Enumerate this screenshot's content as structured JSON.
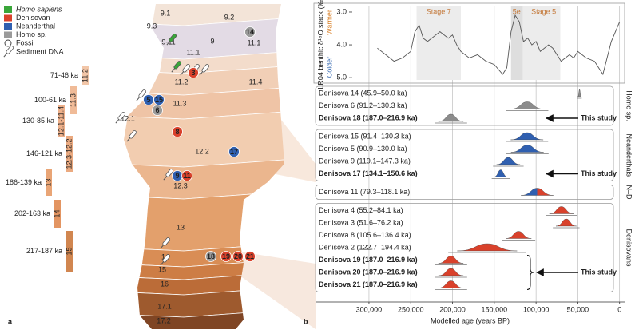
{
  "panel_labels": [
    "a",
    "b"
  ],
  "panel_a": {
    "legend": {
      "groups": [
        {
          "label": "Homo sapiens",
          "color": "#3aa63a"
        },
        {
          "label": "Denisovan",
          "color": "#d9412b"
        },
        {
          "label": "Neanderthal",
          "color": "#2f5fb0"
        },
        {
          "label": "Homo sp.",
          "color": "#9a9a9a"
        }
      ],
      "fossil": "Fossil",
      "sediment": "Sediment DNA"
    },
    "layers": [
      "9.1",
      "9.2",
      "9.3",
      "9-11",
      "9",
      "11.1",
      "11.1",
      "11.2",
      "11.4",
      "11.3",
      "12.1",
      "12.2",
      "12.3",
      "13",
      "14",
      "15",
      "16",
      "17.1",
      "17.2"
    ],
    "fossils": [
      {
        "label": "14",
        "color": "#9a9a9a"
      },
      {
        "label": "3",
        "color": "#d9412b"
      },
      {
        "label": "5",
        "color": "#2f5fb0"
      },
      {
        "label": "15",
        "color": "#2f5fb0"
      },
      {
        "label": "6",
        "color": "#9a9a9a"
      },
      {
        "label": "8",
        "color": "#d9412b"
      },
      {
        "label": "17",
        "color": "#2f5fb0"
      },
      {
        "label": "9",
        "color": "#2f5fb0"
      },
      {
        "label": "11",
        "color": "#d9412b"
      },
      {
        "label": "18",
        "color": "#9a9a9a"
      },
      {
        "label": "19",
        "color": "#d9412b"
      },
      {
        "label": "20",
        "color": "#d9412b"
      },
      {
        "label": "21",
        "color": "#d9412b"
      }
    ],
    "date_bars": [
      {
        "range": "71-46 ka",
        "layer": "11.2"
      },
      {
        "range": "100-61 ka",
        "layer": "11.3"
      },
      {
        "range": "130-85 ka",
        "layer": "12.1-11.4"
      },
      {
        "range": "146-121 ka",
        "layer": "12.3-12.2"
      },
      {
        "range": "186-139 ka",
        "layer": "13"
      },
      {
        "range": "202-163 ka",
        "layer": "14"
      },
      {
        "range": "217-187 ka",
        "layer": "15"
      }
    ]
  },
  "chart_data": {
    "type": "range",
    "xlabel": "Modelled age (years BP)",
    "xlim": [
      364000,
      -6000
    ],
    "xticks": [
      {
        "value": 300000,
        "label": "300,000"
      },
      {
        "value": 250000,
        "label": "250,000"
      },
      {
        "value": 200000,
        "label": "200,000"
      },
      {
        "value": 150000,
        "label": "150,000"
      },
      {
        "value": 100000,
        "label": "100,000"
      },
      {
        "value": 50000,
        "label": "50,000"
      },
      0
    ],
    "grid": true,
    "climate": {
      "ylabel": "LR04 benthic δ¹⁸O stack (‰)",
      "warm": "Warmer",
      "cold": "Colder",
      "ylim": [
        5.07,
        2.83
      ],
      "yticks": [
        {
          "value": 3,
          "label": "3.0"
        },
        {
          "value": 4,
          "label": "4.0"
        },
        {
          "value": 5,
          "label": "5.0"
        }
      ],
      "color": "#555555",
      "stages": [
        {
          "label": "Stage 7",
          "lo": 190000,
          "hi": 243000
        },
        {
          "label": "Stage 5",
          "lo": 71000,
          "hi": 130000
        },
        {
          "label": "5e",
          "lo": 116000,
          "hi": 130000
        }
      ],
      "x": [
        290000,
        280000,
        270000,
        260000,
        250000,
        245000,
        240000,
        235000,
        230000,
        220000,
        215000,
        205000,
        200000,
        195000,
        190000,
        180000,
        170000,
        160000,
        150000,
        140000,
        135000,
        130000,
        125000,
        120000,
        115000,
        110000,
        105000,
        100000,
        95000,
        85000,
        80000,
        75000,
        70000,
        65000,
        60000,
        55000,
        50000,
        40000,
        30000,
        20000,
        10000,
        0
      ],
      "values": [
        4.1,
        4.3,
        4.5,
        4.4,
        4.2,
        3.6,
        3.4,
        3.8,
        3.9,
        3.7,
        3.6,
        3.8,
        3.7,
        4.0,
        4.2,
        4.4,
        4.3,
        4.5,
        4.6,
        4.9,
        4.7,
        3.6,
        3.1,
        3.3,
        3.9,
        3.8,
        4.0,
        3.9,
        4.2,
        4.0,
        4.1,
        4.3,
        4.5,
        4.4,
        4.3,
        4.4,
        4.2,
        4.4,
        4.5,
        4.9,
        3.9,
        3.3
      ]
    },
    "groups": [
      {
        "name": "Homo sp.",
        "color": "#8c8c8c",
        "note": "This study",
        "samples": [
          {
            "label": "Denisova 14 (45.9–50.0 ka)",
            "lo": 45900,
            "hi": 50000,
            "bold": false
          },
          {
            "label": "Denisova 6 (91.2–130.3 ka)",
            "lo": 91200,
            "hi": 130300,
            "bold": false
          },
          {
            "label": "Denisova 18 (187.0–216.9 ka)",
            "lo": 187000,
            "hi": 216900,
            "bold": true
          }
        ]
      },
      {
        "name": "Neanderthals",
        "color": "#2f5fb0",
        "note": "This study",
        "samples": [
          {
            "label": "Denisova 15 (91.4–130.3 ka)",
            "lo": 91400,
            "hi": 130300,
            "bold": false
          },
          {
            "label": "Denisova 5 (90.9–130.0 ka)",
            "lo": 90900,
            "hi": 130000,
            "bold": false
          },
          {
            "label": "Denisova 9 (119.1–147.3 ka)",
            "lo": 119100,
            "hi": 147300,
            "bold": false
          },
          {
            "label": "Denisova 17 (134.1–150.6 ka)",
            "lo": 134100,
            "hi": 150600,
            "bold": true
          }
        ]
      },
      {
        "name": "N–D",
        "color": "#2f5fb0",
        "colors": [
          "#2f5fb0",
          "#d9412b"
        ],
        "samples": [
          {
            "label": "Denisova 11 (79.3–118.1 ka)",
            "lo": 79300,
            "hi": 118100,
            "bold": false
          }
        ]
      },
      {
        "name": "Denisovans",
        "color": "#d9412b",
        "note": "This study",
        "samples": [
          {
            "label": "Denisova 4 (55.2–84.1 ka)",
            "lo": 55200,
            "hi": 84100,
            "bold": false
          },
          {
            "label": "Denisova 3 (51.6–76.2 ka)",
            "lo": 51600,
            "hi": 76200,
            "bold": false
          },
          {
            "label": "Denisova 8 (105.6–136.4 ka)",
            "lo": 105600,
            "hi": 136400,
            "bold": false
          },
          {
            "label": "Denisova 2 (122.7–194.4 ka)",
            "lo": 122700,
            "hi": 194400,
            "bold": false
          },
          {
            "label": "Denisova 19 (187.0–216.9 ka)",
            "lo": 187000,
            "hi": 216900,
            "bold": true
          },
          {
            "label": "Denisova 20 (187.0–216.9 ka)",
            "lo": 187000,
            "hi": 216900,
            "bold": true
          },
          {
            "label": "Denisova 21 (187.0–216.9 ka)",
            "lo": 187000,
            "hi": 216900,
            "bold": true
          }
        ]
      }
    ]
  }
}
